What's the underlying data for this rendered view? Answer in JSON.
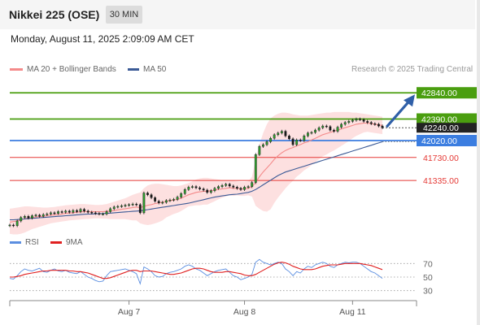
{
  "header": {
    "title": "Nikkei 225 (OSE)",
    "timeframe": "30 MIN",
    "datetime": "Monday, August 11, 2025 2:09:09 AM CET"
  },
  "legend": {
    "ma20_label": "MA 20 + Bollinger Bands",
    "ma50_label": "MA 50",
    "credit": "Research © 2025 Trading Central"
  },
  "rsi_legend": {
    "rsi_label": "RSI",
    "ma9_label": "9MA"
  },
  "colors": {
    "green_level": "#4a9e0f",
    "blue_level": "#3b7de0",
    "red_level": "#e53935",
    "ma20": "#f48a8a",
    "ma50": "#3b5a96",
    "bollinger_fill": "#fde0e0",
    "rsi": "#5b8ee0",
    "rsi_ma": "#e02020",
    "arrow": "#2f5fa8",
    "current_price": "#333333"
  },
  "chart_data": {
    "type": "candlestick",
    "ylim": [
      40500,
      43150
    ],
    "x_tick_labels": [
      "Aug 7",
      "Aug 8",
      "Aug 11"
    ],
    "x_tick_index": [
      32,
      63,
      92
    ],
    "levels": [
      {
        "value": 42840,
        "label": "42840.00",
        "kind": "resistance_target",
        "color": "green"
      },
      {
        "value": 42390,
        "label": "42390.00",
        "kind": "resistance",
        "color": "green"
      },
      {
        "value": 42240,
        "label": "42240.00",
        "kind": "current_price",
        "color": "dark"
      },
      {
        "value": 42020,
        "label": "42020.00",
        "kind": "pivot",
        "color": "blue"
      },
      {
        "value": 41730,
        "label": "41730.00",
        "kind": "support",
        "color": "red"
      },
      {
        "value": 41335,
        "label": "41335.00",
        "kind": "support",
        "color": "red"
      }
    ],
    "close": [
      40570,
      40560,
      40640,
      40700,
      40720,
      40690,
      40730,
      40740,
      40720,
      40750,
      40760,
      40780,
      40770,
      40800,
      40790,
      40810,
      40790,
      40820,
      40800,
      40840,
      40810,
      40790,
      40780,
      40770,
      40760,
      40760,
      40800,
      40850,
      40880,
      40890,
      40900,
      40910,
      40920,
      40930,
      40920,
      40780,
      41120,
      41090,
      41040,
      40980,
      40950,
      40960,
      40990,
      41000,
      41010,
      41050,
      41110,
      41180,
      41220,
      41230,
      41210,
      41190,
      41170,
      41130,
      41160,
      41200,
      41230,
      41250,
      41270,
      41240,
      41220,
      41200,
      41180,
      41220,
      41230,
      41300,
      41780,
      41920,
      41950,
      42000,
      42060,
      42120,
      42150,
      42180,
      42100,
      42050,
      41950,
      42030,
      42020,
      42100,
      42150,
      42160,
      42200,
      42240,
      42270,
      42260,
      42200,
      42180,
      42250,
      42300,
      42330,
      42350,
      42370,
      42390,
      42380,
      42350,
      42330,
      42310,
      42300,
      42270,
      42240
    ],
    "ma20": [
      40620,
      40630,
      40640,
      40660,
      40680,
      40690,
      40700,
      40710,
      40715,
      40720,
      40730,
      40740,
      40745,
      40750,
      40760,
      40770,
      40775,
      40780,
      40790,
      40795,
      40800,
      40800,
      40800,
      40800,
      40800,
      40800,
      40805,
      40810,
      40820,
      40830,
      40840,
      40850,
      40860,
      40870,
      40880,
      40870,
      40890,
      40910,
      40920,
      40940,
      40950,
      40960,
      40980,
      40990,
      41000,
      41010,
      41030,
      41060,
      41090,
      41110,
      41130,
      41140,
      41150,
      41150,
      41160,
      41170,
      41180,
      41190,
      41200,
      41210,
      41200,
      41200,
      41190,
      41190,
      41200,
      41230,
      41300,
      41400,
      41480,
      41550,
      41620,
      41700,
      41760,
      41810,
      41850,
      41880,
      41900,
      41930,
      41950,
      41980,
      42000,
      42030,
      42060,
      42090,
      42120,
      42140,
      42160,
      42180,
      42200,
      42220,
      42240,
      42260,
      42280,
      42300,
      42310,
      42320,
      42320,
      42310,
      42300,
      42290,
      42280
    ],
    "ma50": [
      40660,
      40660,
      40665,
      40670,
      40675,
      40680,
      40685,
      40690,
      40695,
      40700,
      40705,
      40710,
      40715,
      40720,
      40725,
      40730,
      40735,
      40740,
      40745,
      40750,
      40755,
      40758,
      40760,
      40762,
      40765,
      40768,
      40770,
      40775,
      40780,
      40785,
      40790,
      40795,
      40800,
      40805,
      40810,
      40815,
      40825,
      40835,
      40845,
      40855,
      40865,
      40875,
      40885,
      40895,
      40905,
      40915,
      40925,
      40935,
      40945,
      40960,
      40975,
      40990,
      41005,
      41020,
      41035,
      41050,
      41060,
      41070,
      41080,
      41090,
      41095,
      41100,
      41110,
      41120,
      41130,
      41150,
      41180,
      41220,
      41260,
      41300,
      41340,
      41380,
      41420,
      41450,
      41480,
      41500,
      41520,
      41540,
      41560,
      41580,
      41600,
      41620,
      41640,
      41660,
      41680,
      41700,
      41720,
      41740,
      41760,
      41780,
      41800,
      41820,
      41840,
      41860,
      41880,
      41900,
      41920,
      41940,
      41960,
      41980,
      42000
    ],
    "bb_upper": [
      40850,
      40860,
      40870,
      40880,
      40890,
      40890,
      40885,
      40880,
      40875,
      40870,
      40870,
      40875,
      40880,
      40890,
      40900,
      40910,
      40915,
      40920,
      40925,
      40930,
      40930,
      40925,
      40920,
      40915,
      40915,
      40920,
      40930,
      40950,
      40970,
      40990,
      41010,
      41030,
      41060,
      41090,
      41110,
      41130,
      41200,
      41250,
      41270,
      41280,
      41280,
      41270,
      41260,
      41250,
      41240,
      41240,
      41250,
      41270,
      41290,
      41320,
      41350,
      41370,
      41380,
      41380,
      41370,
      41360,
      41350,
      41340,
      41340,
      41340,
      41330,
      41320,
      41310,
      41310,
      41320,
      41400,
      41700,
      41950,
      42150,
      42300,
      42400,
      42450,
      42480,
      42500,
      42500,
      42490,
      42470,
      42460,
      42450,
      42450,
      42450,
      42460,
      42470,
      42480,
      42490,
      42500,
      42500,
      42510,
      42510,
      42510,
      42510,
      42510,
      42500,
      42500,
      42490,
      42480,
      42470,
      42460,
      42450,
      42440,
      42430
    ],
    "bb_lower": [
      40420,
      40410,
      40410,
      40420,
      40440,
      40470,
      40500,
      40520,
      40540,
      40560,
      40580,
      40600,
      40610,
      40620,
      40630,
      40640,
      40650,
      40655,
      40660,
      40665,
      40670,
      40675,
      40680,
      40685,
      40685,
      40680,
      40680,
      40670,
      40670,
      40670,
      40670,
      40670,
      40660,
      40650,
      40650,
      40600,
      40580,
      40570,
      40580,
      40600,
      40620,
      40650,
      40700,
      40730,
      40760,
      40780,
      40810,
      40850,
      40890,
      40900,
      40910,
      40910,
      40920,
      40920,
      40950,
      40980,
      41010,
      41040,
      41060,
      41080,
      41070,
      41080,
      41070,
      41070,
      41080,
      41060,
      40900,
      40850,
      40810,
      40800,
      40840,
      40950,
      41040,
      41120,
      41200,
      41270,
      41330,
      41400,
      41450,
      41510,
      41550,
      41600,
      41650,
      41700,
      41750,
      41780,
      41820,
      41850,
      41890,
      41930,
      41970,
      42010,
      42060,
      42100,
      42130,
      42160,
      42170,
      42160,
      42150,
      42140,
      42130
    ],
    "rsi_ylim": [
      20,
      80
    ],
    "rsi_levels": [
      70,
      50,
      30
    ],
    "rsi": [
      48,
      47,
      52,
      58,
      62,
      60,
      59,
      61,
      63,
      58,
      57,
      60,
      62,
      59,
      58,
      60,
      57,
      56,
      55,
      58,
      54,
      50,
      48,
      45,
      43,
      44,
      52,
      58,
      59,
      60,
      61,
      62,
      60,
      58,
      55,
      40,
      65,
      62,
      58,
      52,
      50,
      51,
      55,
      57,
      58,
      60,
      62,
      66,
      68,
      66,
      62,
      60,
      56,
      52,
      55,
      58,
      60,
      61,
      62,
      57,
      52,
      50,
      46,
      48,
      50,
      54,
      72,
      76,
      72,
      70,
      68,
      70,
      72,
      70,
      62,
      58,
      52,
      58,
      56,
      62,
      66,
      64,
      68,
      70,
      72,
      70,
      66,
      64,
      68,
      70,
      72,
      71,
      72,
      72,
      70,
      66,
      62,
      58,
      56,
      52,
      48
    ],
    "rsi_ma": [
      50,
      50,
      51,
      52,
      54,
      55,
      56,
      57,
      58,
      59,
      59,
      60,
      60,
      60,
      60,
      60,
      59,
      59,
      58,
      58,
      57,
      56,
      54,
      52,
      50,
      48,
      48,
      49,
      51,
      53,
      55,
      57,
      59,
      60,
      60,
      58,
      59,
      59,
      59,
      58,
      57,
      56,
      55,
      54,
      54,
      55,
      56,
      58,
      60,
      62,
      63,
      63,
      62,
      60,
      58,
      57,
      57,
      57,
      58,
      58,
      57,
      56,
      55,
      53,
      52,
      52,
      54,
      57,
      60,
      63,
      66,
      69,
      71,
      72,
      71,
      69,
      66,
      64,
      62,
      61,
      61,
      61,
      62,
      64,
      66,
      67,
      68,
      68,
      68,
      69,
      70,
      70,
      70,
      70,
      70,
      69,
      68,
      67,
      65,
      63,
      61
    ]
  }
}
